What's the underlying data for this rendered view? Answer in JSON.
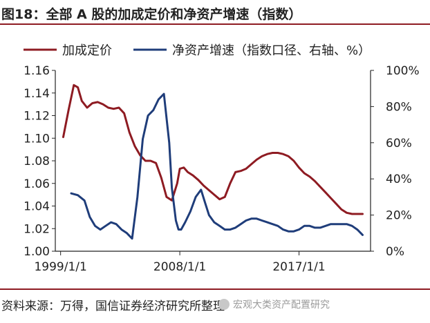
{
  "header": {
    "title": "图18：全部 A 股的加成定价和净资产增速（指数）"
  },
  "footer": {
    "source": "资料来源：万得，国信证券经济研究所整理",
    "watermark": "宏观大类资产配置研究"
  },
  "colors": {
    "markup": "#8e1b22",
    "growth": "#1f3d7a",
    "rule": "#8e1b22"
  },
  "chart_data": {
    "type": "line",
    "title": "",
    "xlabel": "",
    "ylabel": "",
    "x_ticks": [
      "1999/1/1",
      "2008/1/1",
      "2017/1/1"
    ],
    "x_tick_pos": [
      1999.0,
      2008.0,
      2017.0
    ],
    "xlim": [
      1998.6,
      2022.4
    ],
    "ylim_left": [
      1.0,
      1.16
    ],
    "ylim_right": [
      0,
      100
    ],
    "y_ticks_left": [
      "1.00",
      "1.02",
      "1.04",
      "1.06",
      "1.08",
      "1.10",
      "1.12",
      "1.14",
      "1.16"
    ],
    "y_ticks_right": [
      "0%",
      "20%",
      "40%",
      "60%",
      "80%",
      "100%"
    ],
    "legend_position": "top",
    "grid": false,
    "series": [
      {
        "name": "加成定价",
        "axis": "left",
        "x": [
          1999.2,
          1999.6,
          2000.0,
          2000.3,
          2000.6,
          2001.0,
          2001.4,
          2001.8,
          2002.2,
          2002.6,
          2003.0,
          2003.4,
          2003.8,
          2004.2,
          2004.6,
          2005.0,
          2005.4,
          2005.8,
          2006.2,
          2006.6,
          2007.0,
          2007.4,
          2007.8,
          2008.0,
          2008.3,
          2008.6,
          2009.0,
          2009.4,
          2009.8,
          2010.2,
          2010.6,
          2011.0,
          2011.4,
          2011.8,
          2012.2,
          2012.6,
          2013.0,
          2013.4,
          2013.8,
          2014.2,
          2014.6,
          2015.0,
          2015.4,
          2015.8,
          2016.2,
          2016.6,
          2017.0,
          2017.4,
          2017.8,
          2018.2,
          2018.6,
          2019.0,
          2019.4,
          2019.8,
          2020.2,
          2020.6,
          2021.0,
          2021.4,
          2021.8
        ],
        "values": [
          1.101,
          1.125,
          1.147,
          1.145,
          1.133,
          1.127,
          1.131,
          1.132,
          1.13,
          1.127,
          1.126,
          1.127,
          1.122,
          1.105,
          1.093,
          1.085,
          1.08,
          1.08,
          1.078,
          1.065,
          1.048,
          1.045,
          1.06,
          1.073,
          1.074,
          1.07,
          1.067,
          1.063,
          1.058,
          1.054,
          1.05,
          1.046,
          1.048,
          1.06,
          1.07,
          1.071,
          1.073,
          1.077,
          1.081,
          1.084,
          1.086,
          1.087,
          1.087,
          1.086,
          1.084,
          1.08,
          1.074,
          1.069,
          1.066,
          1.062,
          1.057,
          1.052,
          1.047,
          1.042,
          1.037,
          1.034,
          1.033,
          1.033,
          1.033
        ]
      },
      {
        "name": "净资产增速（指数口径、右轴、%）",
        "axis": "right",
        "x": [
          1999.8,
          2000.3,
          2000.8,
          2001.2,
          2001.6,
          2002.0,
          2002.4,
          2002.8,
          2003.2,
          2003.6,
          2004.0,
          2004.4,
          2004.8,
          2005.2,
          2005.6,
          2006.0,
          2006.4,
          2006.8,
          2007.2,
          2007.4,
          2007.7,
          2007.9,
          2008.1,
          2008.4,
          2008.8,
          2009.2,
          2009.6,
          2009.9,
          2010.2,
          2010.6,
          2011.0,
          2011.4,
          2011.8,
          2012.2,
          2012.6,
          2013.0,
          2013.4,
          2013.8,
          2014.2,
          2014.6,
          2015.0,
          2015.4,
          2015.8,
          2016.2,
          2016.6,
          2017.0,
          2017.4,
          2017.8,
          2018.2,
          2018.6,
          2019.0,
          2019.4,
          2019.8,
          2020.2,
          2020.6,
          2021.0,
          2021.4,
          2021.8
        ],
        "values": [
          32,
          31,
          28,
          19,
          14,
          12,
          14,
          16,
          15,
          12,
          10,
          7,
          30,
          62,
          75,
          78,
          84,
          87,
          60,
          35,
          17,
          12,
          12,
          16,
          22,
          30,
          34,
          27,
          20,
          16,
          14,
          12,
          12,
          13,
          15,
          17,
          18,
          18,
          17,
          16,
          15,
          14,
          12,
          11,
          11,
          12,
          14,
          14,
          13,
          13,
          14,
          15,
          15,
          15,
          15,
          14,
          12,
          9
        ]
      }
    ]
  }
}
